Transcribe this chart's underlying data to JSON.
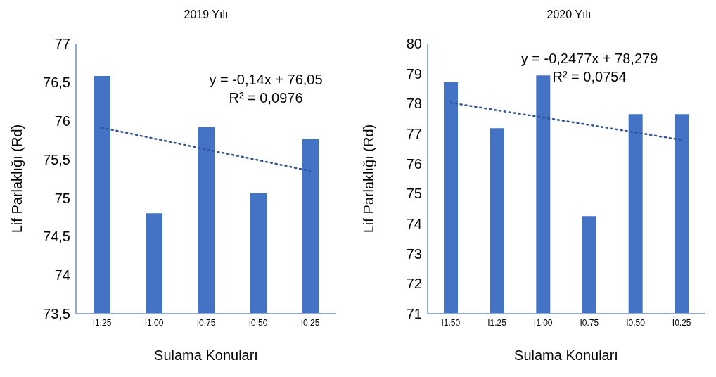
{
  "chart_data": [
    {
      "type": "bar",
      "title": "2019 Yılı",
      "xlabel": "Sulama Konuları",
      "ylabel": "Lif Parlaklığı (Rd)",
      "categories": [
        "I1.25",
        "I1.00",
        "I0.75",
        "I0.50",
        "I0.25"
      ],
      "series": [
        {
          "color": "#4472c4",
          "values": [
            76.58,
            74.8,
            75.92,
            75.06,
            75.76
          ]
        },
        {
          "type": "line",
          "color": "#2f5597",
          "line_style": "dotted",
          "marker": "none",
          "values": [
            75.91,
            75.77,
            75.63,
            75.49,
            75.35
          ]
        }
      ],
      "ylim": [
        73.5,
        77
      ],
      "yticks": [
        {
          "value": 73.5,
          "label": "73,5"
        },
        74,
        {
          "value": 74.5,
          "label": "74,5"
        },
        75,
        {
          "value": 75.5,
          "label": "75,5"
        },
        76,
        {
          "value": 76.5,
          "label": "76,5"
        },
        77
      ],
      "grid": false,
      "legend": false,
      "annotations": [
        "y = -0,14x + 76,05",
        "R² = 0,0976"
      ]
    },
    {
      "type": "bar",
      "title": "2020 Yılı",
      "xlabel": "Sulama Konuları",
      "ylabel": "Lif Parlaklığı (Rd)",
      "categories": [
        "I1.50",
        "I1.25",
        "I1.00",
        "I0.75",
        "I0.50",
        "I0.25"
      ],
      "series": [
        {
          "color": "#4472c4",
          "values": [
            78.71,
            77.18,
            78.94,
            74.25,
            77.65,
            77.65
          ]
        },
        {
          "type": "line",
          "color": "#2f5597",
          "line_style": "dotted",
          "marker": "none",
          "values": [
            78.03,
            77.78,
            77.54,
            77.29,
            77.04,
            76.79
          ]
        }
      ],
      "ylim": [
        71,
        80
      ],
      "yticks": [
        71,
        72,
        73,
        74,
        75,
        76,
        77,
        78,
        79,
        80
      ],
      "grid": false,
      "legend": false,
      "annotations": [
        "y = -0,2477x + 78,279",
        "R² = 0,0754"
      ]
    }
  ]
}
